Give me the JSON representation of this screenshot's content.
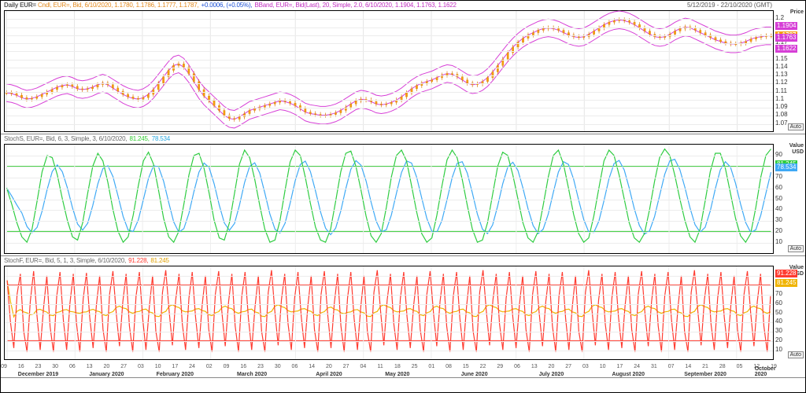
{
  "title": "Daily EUR=",
  "date_range": "5/12/2019 - 22/10/2020 (GMT)",
  "panel1": {
    "header_parts": [
      {
        "t": "Cndl, EUR=, Bid, 6/10/2020, 1.1780, 1.1786, 1.1777, 1.1787,",
        "c": "#e38b20"
      },
      {
        "t": "+0.0006, (+0.05%),",
        "c": "#1a4fd6"
      },
      {
        "t": "BBand, EUR=, Bid(Last),  20, Simple, 2.0, 6/10/2020, 1.1904, 1.1763, 1.1622",
        "c": "#c030c0"
      }
    ],
    "ylabel": "Price",
    "ylim": [
      1.06,
      1.21
    ],
    "yticks": [
      1.07,
      1.08,
      1.09,
      1.1,
      1.11,
      1.12,
      1.13,
      1.14,
      1.15,
      1.16,
      1.17,
      1.18,
      1.19,
      1.2
    ],
    "grid_color": "#ececec",
    "candle_color": "#f59e0b",
    "candle_border": "#d97706",
    "bb_color": "#d63ed6",
    "badges": [
      {
        "v": "1.1904",
        "c": "#d63ed6",
        "y": 1.1904
      },
      {
        "v": "1.1787",
        "c": "#f59e0b",
        "y": 1.1787,
        "bold": true
      },
      {
        "v": "1.1763",
        "c": "#d63ed6",
        "y": 1.1763
      },
      {
        "v": "1.1622",
        "c": "#d63ed6",
        "y": 1.1622
      }
    ],
    "price_mid": [
      1.108,
      1.107,
      1.105,
      1.102,
      1.1,
      1.101,
      1.103,
      1.106,
      1.109,
      1.112,
      1.115,
      1.117,
      1.118,
      1.116,
      1.113,
      1.112,
      1.113,
      1.115,
      1.118,
      1.12,
      1.118,
      1.114,
      1.11,
      1.106,
      1.103,
      1.101,
      1.1,
      1.102,
      1.106,
      1.112,
      1.12,
      1.128,
      1.136,
      1.142,
      1.144,
      1.14,
      1.132,
      1.122,
      1.112,
      1.104,
      1.098,
      1.092,
      1.086,
      1.08,
      1.076,
      1.075,
      1.078,
      1.082,
      1.086,
      1.088,
      1.09,
      1.092,
      1.094,
      1.096,
      1.098,
      1.097,
      1.095,
      1.092,
      1.088,
      1.084,
      1.082,
      1.081,
      1.08,
      1.08,
      1.081,
      1.083,
      1.086,
      1.09,
      1.094,
      1.098,
      1.1,
      1.099,
      1.097,
      1.094,
      1.093,
      1.094,
      1.096,
      1.099,
      1.103,
      1.108,
      1.113,
      1.117,
      1.12,
      1.122,
      1.124,
      1.127,
      1.13,
      1.132,
      1.131,
      1.128,
      1.124,
      1.12,
      1.118,
      1.119,
      1.122,
      1.127,
      1.134,
      1.142,
      1.15,
      1.158,
      1.165,
      1.171,
      1.176,
      1.18,
      1.183,
      1.186,
      1.188,
      1.189,
      1.188,
      1.186,
      1.183,
      1.18,
      1.178,
      1.177,
      1.178,
      1.181,
      1.185,
      1.189,
      1.193,
      1.196,
      1.198,
      1.199,
      1.198,
      1.196,
      1.193,
      1.189,
      1.185,
      1.181,
      1.178,
      1.177,
      1.178,
      1.181,
      1.185,
      1.188,
      1.19,
      1.189,
      1.186,
      1.183,
      1.18,
      1.177,
      1.174,
      1.172,
      1.17,
      1.169,
      1.169,
      1.17,
      1.172,
      1.175,
      1.177,
      1.178,
      1.179,
      1.179
    ],
    "bb_up_off": 0.011,
    "bb_dn_off": 0.011
  },
  "panel2": {
    "header_parts": [
      {
        "t": "StochS, EUR=, Bid,  6, 3, Simple, 3, 6/10/2020,",
        "c": "#6a6a6a"
      },
      {
        "t": "81.245,",
        "c": "#33cc33"
      },
      {
        "t": "78.534",
        "c": "#2aa8e0"
      }
    ],
    "ylabel1": "Value",
    "ylabel2": "USD",
    "ylim": [
      0,
      100
    ],
    "yticks": [
      10,
      20,
      30,
      40,
      50,
      60,
      70,
      80,
      90
    ],
    "thresholds": [
      {
        "y": 80,
        "c": "#33cc33"
      },
      {
        "y": 20,
        "c": "#33cc33"
      }
    ],
    "line_green": "#2ecc40",
    "line_blue": "#3fa9f5",
    "badges": [
      {
        "v": "81.245",
        "c": "#2ecc40",
        "y": 81.245
      },
      {
        "v": "78.534",
        "c": "#3fa9f5",
        "y": 78.534
      }
    ],
    "series_k": [
      60,
      45,
      28,
      15,
      10,
      22,
      48,
      75,
      90,
      88,
      72,
      50,
      30,
      15,
      12,
      28,
      55,
      80,
      92,
      85,
      65,
      40,
      20,
      10,
      15,
      35,
      62,
      85,
      93,
      82,
      58,
      32,
      15,
      10,
      20,
      45,
      72,
      90,
      92,
      78,
      55,
      30,
      14,
      12,
      28,
      55,
      82,
      95,
      88,
      68,
      44,
      22,
      10,
      12,
      30,
      58,
      84,
      95,
      90,
      70,
      46,
      24,
      12,
      10,
      22,
      48,
      75,
      92,
      94,
      80,
      58,
      34,
      16,
      10,
      18,
      42,
      70,
      90,
      95,
      85,
      62,
      38,
      18,
      10,
      14,
      35,
      62,
      86,
      95,
      88,
      68,
      44,
      22,
      10,
      12,
      28,
      54,
      80,
      93,
      90,
      72,
      50,
      28,
      14,
      10,
      20,
      44,
      70,
      90,
      95,
      82,
      60,
      36,
      18,
      10,
      14,
      34,
      60,
      85,
      95,
      90,
      72,
      50,
      28,
      14,
      10,
      18,
      40,
      66,
      88,
      96,
      90,
      72,
      50,
      30,
      15,
      10,
      22,
      48,
      75,
      92,
      92,
      78,
      55,
      32,
      16,
      10,
      18,
      42,
      70,
      90,
      96
    ],
    "lag": 3
  },
  "panel3": {
    "header_parts": [
      {
        "t": "StochF, EUR=, Bid,  5, 1, 3, Simple, 6/10/2020,",
        "c": "#6a6a6a"
      },
      {
        "t": "91.228,",
        "c": "#ff3b30"
      },
      {
        "t": "81.245",
        "c": "#e0a000"
      }
    ],
    "ylabel1": "Value",
    "ylabel2": "USD",
    "ylim": [
      0,
      100
    ],
    "yticks": [
      10,
      20,
      30,
      40,
      50,
      60,
      70,
      80,
      90
    ],
    "thresholds": [
      {
        "y": 80,
        "c": "#ff3b30"
      },
      {
        "y": 20,
        "c": "#ff3b30"
      }
    ],
    "line_red": "#ff3b30",
    "line_yellow": "#f0b400",
    "badges": [
      {
        "v": "91.228",
        "c": "#ff3b30",
        "y": 91.228
      },
      {
        "v": "81.245",
        "c": "#f0b400",
        "y": 81.245
      }
    ],
    "series_k": [
      85,
      40,
      12,
      70,
      92,
      30,
      8,
      62,
      95,
      48,
      10,
      55,
      90,
      35,
      8,
      68,
      94,
      42,
      10,
      60,
      92,
      38,
      8,
      65,
      93,
      45,
      12,
      58,
      90,
      32,
      8,
      70,
      95,
      50,
      14,
      62,
      92,
      36,
      8,
      68,
      94,
      44,
      10,
      56,
      90,
      30,
      8,
      72,
      96,
      52,
      15,
      64,
      92,
      38,
      10,
      66,
      94,
      46,
      12,
      58,
      90,
      32,
      8,
      70,
      95,
      50,
      14,
      62,
      92,
      36,
      8,
      68,
      94,
      44,
      10,
      56,
      90,
      30,
      8,
      72,
      96,
      52,
      15,
      64,
      92,
      38,
      10,
      66,
      94,
      46,
      12,
      58,
      90,
      32,
      8,
      70,
      95,
      48,
      12,
      60,
      92,
      36,
      8,
      66,
      94,
      44,
      10,
      56,
      90,
      30,
      8,
      72,
      96,
      52,
      15,
      64,
      92,
      38,
      10,
      66,
      94,
      46,
      12,
      58,
      90,
      32,
      8,
      70,
      95,
      50,
      14,
      62,
      92,
      36,
      8,
      68,
      94,
      44,
      10,
      56,
      90,
      30,
      8,
      72,
      96,
      52,
      15,
      64,
      92,
      38,
      10,
      66,
      94,
      46,
      12,
      58,
      90,
      32,
      8,
      70,
      95,
      50,
      14,
      62,
      92,
      36,
      8,
      68,
      94,
      44,
      10,
      56,
      90,
      30,
      8,
      72,
      96,
      52,
      15,
      64,
      92,
      38,
      10,
      66,
      94,
      46,
      12,
      58,
      90,
      32,
      8,
      70,
      95,
      50,
      14,
      62,
      92,
      36,
      8,
      68,
      94,
      44,
      10,
      56,
      90,
      30,
      8,
      72,
      96,
      52,
      15,
      64,
      92,
      38,
      10,
      66,
      94,
      46,
      12,
      58,
      90,
      32,
      8,
      70,
      95,
      50,
      14,
      62,
      92,
      36,
      8,
      68
    ],
    "lag": 3
  },
  "xaxis": {
    "days": [
      "09",
      "16",
      "23",
      "30",
      "06",
      "13",
      "20",
      "27",
      "03",
      "10",
      "17",
      "24",
      "02",
      "09",
      "16",
      "23",
      "30",
      "06",
      "14",
      "20",
      "27",
      "04",
      "11",
      "18",
      "25",
      "01",
      "08",
      "15",
      "22",
      "29",
      "06",
      "13",
      "20",
      "27",
      "03",
      "10",
      "17",
      "24",
      "31",
      "07",
      "14",
      "21",
      "28",
      "05",
      "12",
      "19"
    ],
    "months": [
      {
        "label": "December 2019",
        "i": 2
      },
      {
        "label": "January 2020",
        "i": 6
      },
      {
        "label": "February 2020",
        "i": 10
      },
      {
        "label": "March 2020",
        "i": 14.5
      },
      {
        "label": "April 2020",
        "i": 19
      },
      {
        "label": "May 2020",
        "i": 23
      },
      {
        "label": "June 2020",
        "i": 27.5
      },
      {
        "label": "July 2020",
        "i": 32
      },
      {
        "label": "August 2020",
        "i": 36.5
      },
      {
        "label": "September 2020",
        "i": 41
      },
      {
        "label": "October 2020",
        "i": 44.5
      }
    ],
    "month_grid_i": [
      0,
      4,
      8,
      12,
      17,
      21,
      25,
      30,
      34,
      39,
      43
    ]
  },
  "auto_label": "Auto"
}
